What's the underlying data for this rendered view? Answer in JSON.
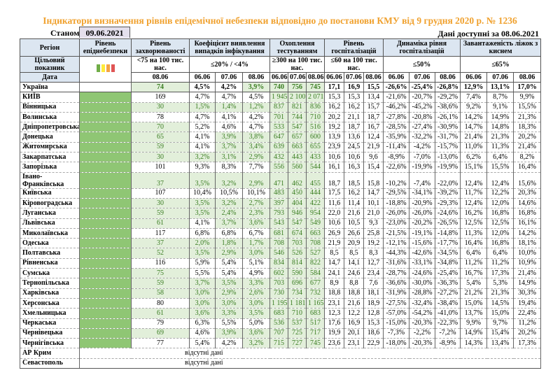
{
  "title": "Індикатори визначення рівнів епідемічної небезпеки відповідно до постанови КМУ від 9 грудня 2020 р. № 1236",
  "as_of_label": "Станом на",
  "as_of_date": "09.06.2021",
  "available_label": "Дані доступні за 08.06.2021",
  "headers": {
    "region": "Регіон",
    "level": "Рівень епіднебезпеки",
    "incidence": "Рівень захворюваності",
    "detection": "Коефіцієнт виявлення випадків інфікування",
    "testing": "Охоплення тестуванням",
    "hospital": "Рівень госпіталізацій",
    "dynamics": "Динаміка рівня госпіталізацій",
    "beds": "Завантаженість ліжок з киснем"
  },
  "targets": {
    "label": "Цільовий показник",
    "incidence": "<75 на 100 тис. нас.",
    "detection": "≤20% / <4%",
    "testing": "≥300 на 100 тис. нас.",
    "hospital": "≤60 на 100 тис. нас.",
    "dynamics": "≤50%",
    "beds": "≤65%"
  },
  "level_legend_colors": [
    "#70ad47",
    "#ffeb3b",
    "#f4a343",
    "#e05555"
  ],
  "colors": {
    "header_bg": "#dce6f1",
    "ok_bg": "#e2efda",
    "ok_text": "#3a7d22",
    "level_green": "#8fc674",
    "title": "#f0a12e"
  },
  "dates": {
    "label": "Дата",
    "incidence": "08.06",
    "triple": [
      "06.06",
      "07.06",
      "08.06"
    ]
  },
  "rows": [
    {
      "region": "Україна",
      "level": "",
      "cells": [
        "74",
        "4,5%",
        "4,2%",
        "3,9%",
        "740",
        "756",
        "745",
        "17,1",
        "16,9",
        "15,5",
        "-26,6%",
        "-25,4%",
        "-26,8%",
        "12,9%",
        "13,1%",
        "17,0%"
      ],
      "ok": [
        0,
        3,
        4,
        5,
        6
      ]
    },
    {
      "region": "КИЇВ",
      "level": "green",
      "cells": [
        "169",
        "4,7%",
        "4,7%",
        "4,5%",
        "1 945",
        "2 100",
        "2 071",
        "15,3",
        "15,3",
        "13,4",
        "-21,6%",
        "-20,7%",
        "-29,2%",
        "7,4%",
        "8,7%",
        "9,9%"
      ],
      "ok": [
        4,
        5,
        6
      ]
    },
    {
      "region": "Вінницька",
      "level": "green",
      "cells": [
        "30",
        "1,5%",
        "1,4%",
        "1,2%",
        "837",
        "821",
        "836",
        "16,2",
        "16,2",
        "15,7",
        "-46,2%",
        "-45,2%",
        "-38,6%",
        "9,2%",
        "9,1%",
        "15,5%"
      ],
      "ok": [
        0,
        1,
        2,
        3,
        4,
        5,
        6
      ]
    },
    {
      "region": "Волинська",
      "level": "green",
      "cells": [
        "78",
        "4,7%",
        "4,1%",
        "4,2%",
        "701",
        "744",
        "710",
        "20,2",
        "21,1",
        "18,7",
        "-27,8%",
        "-20,8%",
        "-26,1%",
        "14,2%",
        "14,9%",
        "21,3%"
      ],
      "ok": [
        4,
        5,
        6
      ]
    },
    {
      "region": "Дніпропетровська",
      "level": "green",
      "cells": [
        "70",
        "5,2%",
        "4,6%",
        "4,7%",
        "533",
        "547",
        "516",
        "19,2",
        "18,7",
        "16,7",
        "-28,5%",
        "-27,4%",
        "-30,9%",
        "14,7%",
        "14,8%",
        "18,3%"
      ],
      "ok": [
        0,
        4,
        5,
        6
      ]
    },
    {
      "region": "Донецька",
      "level": "green",
      "cells": [
        "65",
        "4,1%",
        "3,9%",
        "3,8%",
        "647",
        "657",
        "600",
        "13,9",
        "13,6",
        "12,4",
        "-35,9%",
        "-32,2%",
        "-31,7%",
        "21,4%",
        "21,3%",
        "20,2%"
      ],
      "ok": [
        0,
        2,
        3,
        4,
        5,
        6
      ]
    },
    {
      "region": "Житомирська",
      "level": "green",
      "cells": [
        "59",
        "4,1%",
        "3,7%",
        "3,4%",
        "639",
        "663",
        "655",
        "23,9",
        "24,5",
        "21,9",
        "-11,4%",
        "-4,2%",
        "-15,7%",
        "11,0%",
        "11,3%",
        "21,4%"
      ],
      "ok": [
        0,
        2,
        3,
        4,
        5,
        6
      ]
    },
    {
      "region": "Закарпатська",
      "level": "green",
      "cells": [
        "30",
        "3,2%",
        "3,1%",
        "2,9%",
        "432",
        "443",
        "433",
        "10,6",
        "10,6",
        "9,6",
        "-8,9%",
        "-7,0%",
        "-13,0%",
        "6,2%",
        "6,4%",
        "8,2%"
      ],
      "ok": [
        0,
        1,
        2,
        3,
        4,
        5,
        6
      ]
    },
    {
      "region": "Запорізька",
      "level": "green",
      "cells": [
        "101",
        "9,3%",
        "8,3%",
        "7,7%",
        "556",
        "560",
        "544",
        "16,1",
        "16,3",
        "15,4",
        "-22,6%",
        "-19,9%",
        "-19,9%",
        "15,1%",
        "15,5%",
        "16,4%"
      ],
      "ok": [
        4,
        5,
        6
      ]
    },
    {
      "region": "Івано-Франківська",
      "level": "green",
      "cells": [
        "37",
        "3,5%",
        "3,2%",
        "2,9%",
        "471",
        "462",
        "455",
        "18,7",
        "18,5",
        "15,8",
        "-10,2%",
        "-7,4%",
        "-22,0%",
        "12,4%",
        "12,4%",
        "15,6%"
      ],
      "ok": [
        0,
        1,
        2,
        3,
        4,
        5,
        6
      ]
    },
    {
      "region": "Київська",
      "level": "green",
      "cells": [
        "107",
        "10,4%",
        "10,5%",
        "10,1%",
        "483",
        "450",
        "444",
        "17,5",
        "16,2",
        "14,7",
        "-29,5%",
        "-34,1%",
        "-39,2%",
        "11,7%",
        "12,2%",
        "20,3%"
      ],
      "ok": [
        4,
        5,
        6
      ]
    },
    {
      "region": "Кіровоградська",
      "level": "green",
      "cells": [
        "30",
        "3,5%",
        "3,2%",
        "2,7%",
        "397",
        "404",
        "422",
        "11,6",
        "11,4",
        "10,1",
        "-18,8%",
        "-20,9%",
        "-29,3%",
        "12,4%",
        "12,0%",
        "14,6%"
      ],
      "ok": [
        0,
        1,
        2,
        3,
        4,
        5,
        6
      ]
    },
    {
      "region": "Луганська",
      "level": "green",
      "cells": [
        "59",
        "3,5%",
        "2,4%",
        "2,3%",
        "793",
        "946",
        "954",
        "22,0",
        "21,6",
        "21,0",
        "-26,0%",
        "-26,0%",
        "-24,6%",
        "16,2%",
        "16,8%",
        "16,8%"
      ],
      "ok": [
        0,
        1,
        2,
        3,
        4,
        5,
        6
      ]
    },
    {
      "region": "Львівська",
      "level": "green",
      "cells": [
        "61",
        "4,1%",
        "3,7%",
        "3,6%",
        "543",
        "547",
        "549",
        "10,6",
        "10,5",
        "9,3",
        "-23,0%",
        "-20,2%",
        "-26,5%",
        "12,5%",
        "12,5%",
        "16,1%"
      ],
      "ok": [
        0,
        2,
        3,
        4,
        5,
        6
      ]
    },
    {
      "region": "Миколаївська",
      "level": "green",
      "cells": [
        "117",
        "6,8%",
        "6,8%",
        "6,7%",
        "681",
        "674",
        "663",
        "26,9",
        "26,6",
        "25,8",
        "-21,5%",
        "-19,1%",
        "-14,8%",
        "11,3%",
        "12,0%",
        "14,2%"
      ],
      "ok": [
        4,
        5,
        6
      ]
    },
    {
      "region": "Одеська",
      "level": "green",
      "cells": [
        "37",
        "2,0%",
        "1,8%",
        "1,7%",
        "708",
        "703",
        "708",
        "21,9",
        "20,9",
        "19,2",
        "-12,1%",
        "-15,6%",
        "-17,7%",
        "16,4%",
        "16,8%",
        "18,1%"
      ],
      "ok": [
        0,
        1,
        2,
        3,
        4,
        5,
        6
      ]
    },
    {
      "region": "Полтавська",
      "level": "green",
      "cells": [
        "52",
        "3,5%",
        "2,9%",
        "3,0%",
        "546",
        "526",
        "527",
        "8,5",
        "8,5",
        "8,3",
        "-44,3%",
        "-42,6%",
        "-34,5%",
        "6,4%",
        "6,4%",
        "10,0%"
      ],
      "ok": [
        0,
        1,
        2,
        3,
        4,
        5,
        6
      ]
    },
    {
      "region": "Рівненська",
      "level": "green",
      "cells": [
        "116",
        "5,9%",
        "5,4%",
        "5,1%",
        "834",
        "814",
        "822",
        "14,7",
        "14,1",
        "12,7",
        "-31,6%",
        "-33,1%",
        "-34,8%",
        "11,2%",
        "11,2%",
        "10,9%"
      ],
      "ok": [
        4,
        5,
        6
      ]
    },
    {
      "region": "Сумська",
      "level": "green",
      "cells": [
        "75",
        "5,5%",
        "5,4%",
        "4,9%",
        "602",
        "590",
        "584",
        "24,1",
        "24,6",
        "23,4",
        "-28,7%",
        "-24,6%",
        "-25,4%",
        "16,7%",
        "17,3%",
        "21,4%"
      ],
      "ok": [
        0,
        4,
        5,
        6
      ]
    },
    {
      "region": "Тернопільська",
      "level": "green",
      "cells": [
        "59",
        "3,7%",
        "3,5%",
        "3,3%",
        "703",
        "696",
        "677",
        "8,9",
        "8,8",
        "7,6",
        "-36,6%",
        "-30,0%",
        "-36,3%",
        "5,4%",
        "5,3%",
        "14,9%"
      ],
      "ok": [
        0,
        1,
        2,
        3,
        4,
        5,
        6
      ]
    },
    {
      "region": "Харківська",
      "level": "green",
      "cells": [
        "58",
        "3,0%",
        "2,9%",
        "2,6%",
        "730",
        "734",
        "732",
        "18,8",
        "18,8",
        "18,1",
        "-31,9%",
        "-28,8%",
        "-27,2%",
        "21,2%",
        "21,3%",
        "30,3%"
      ],
      "ok": [
        0,
        1,
        2,
        3,
        4,
        5,
        6
      ]
    },
    {
      "region": "Херсонська",
      "level": "green",
      "cells": [
        "80",
        "3,0%",
        "3,0%",
        "3,0%",
        "1 195",
        "1 181",
        "1 165",
        "23,1",
        "21,6",
        "18,9",
        "-27,5%",
        "-32,4%",
        "-38,4%",
        "15,0%",
        "14,5%",
        "19,4%"
      ],
      "ok": [
        1,
        2,
        3,
        4,
        5,
        6
      ]
    },
    {
      "region": "Хмельницька",
      "level": "green",
      "cells": [
        "61",
        "3,6%",
        "3,3%",
        "3,5%",
        "683",
        "710",
        "683",
        "12,3",
        "12,2",
        "12,8",
        "-57,0%",
        "-54,2%",
        "-41,0%",
        "13,7%",
        "15,0%",
        "22,4%"
      ],
      "ok": [
        0,
        1,
        2,
        3,
        4,
        5,
        6
      ]
    },
    {
      "region": "Черкаська",
      "level": "green",
      "cells": [
        "79",
        "6,3%",
        "5,5%",
        "5,0%",
        "536",
        "537",
        "517",
        "17,6",
        "16,9",
        "15,3",
        "-15,0%",
        "-20,3%",
        "-22,3%",
        "9,9%",
        "9,7%",
        "11,2%"
      ],
      "ok": [
        4,
        5,
        6
      ]
    },
    {
      "region": "Чернівецька",
      "level": "green",
      "cells": [
        "69",
        "4,6%",
        "3,9%",
        "3,6%",
        "707",
        "725",
        "717",
        "19,9",
        "20,1",
        "18,6",
        "-7,3%",
        "-2,2%",
        "-7,2%",
        "14,9%",
        "15,4%",
        "20,2%"
      ],
      "ok": [
        0,
        2,
        3,
        4,
        5,
        6
      ]
    },
    {
      "region": "Чернігівська",
      "level": "green",
      "cells": [
        "77",
        "5,4%",
        "4,2%",
        "3,2%",
        "715",
        "727",
        "745",
        "23,6",
        "23,1",
        "22,9",
        "-18,0%",
        "-20,3%",
        "-8,9%",
        "14,3%",
        "13,4%",
        "17,3%"
      ],
      "ok": [
        3,
        4,
        5,
        6
      ]
    }
  ],
  "no_data_rows": [
    {
      "region": "АР Крим",
      "text": "відсутні дані"
    },
    {
      "region": "Севастополь",
      "text": "відсутні дані"
    }
  ]
}
